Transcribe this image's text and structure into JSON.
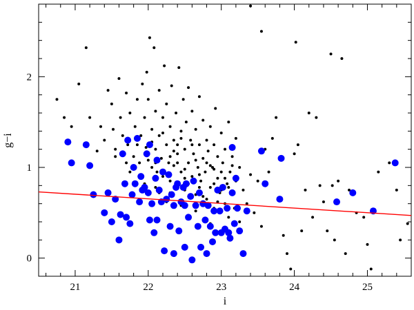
{
  "chart_data": {
    "type": "scatter",
    "xlabel": "i",
    "ylabel": "g−i",
    "xlim": [
      20.5,
      25.6
    ],
    "ylim": [
      -0.2,
      2.8
    ],
    "xticks": [
      21,
      22,
      23,
      24,
      25
    ],
    "yticks": [
      0,
      1,
      2
    ],
    "xtick_labels": [
      "21",
      "22",
      "23",
      "24",
      "25"
    ],
    "ytick_labels": [
      "0",
      "1",
      "2"
    ],
    "grid": false,
    "series": [
      {
        "marker": "small-dot",
        "color": "#000000",
        "points": [
          [
            20.75,
            1.75
          ],
          [
            20.85,
            1.55
          ],
          [
            20.95,
            1.45
          ],
          [
            21.05,
            1.92
          ],
          [
            21.15,
            2.32
          ],
          [
            21.2,
            1.55
          ],
          [
            21.3,
            1.18
          ],
          [
            21.35,
            1.45
          ],
          [
            21.4,
            1.3
          ],
          [
            21.45,
            1.85
          ],
          [
            21.5,
            1.7
          ],
          [
            21.52,
            1.42
          ],
          [
            21.55,
            1.2
          ],
          [
            21.6,
            1.98
          ],
          [
            21.62,
            1.55
          ],
          [
            21.65,
            1.35
          ],
          [
            21.7,
            1.82
          ],
          [
            21.72,
            1.25
          ],
          [
            21.75,
            1.6
          ],
          [
            21.8,
            1.12
          ],
          [
            21.82,
            1.45
          ],
          [
            21.85,
            1.75
          ],
          [
            21.88,
            1.05
          ],
          [
            21.9,
            1.35
          ],
          [
            21.92,
            1.92
          ],
          [
            21.95,
            1.55
          ],
          [
            21.97,
            1.22
          ],
          [
            21.98,
            2.05
          ],
          [
            22.0,
            1.75
          ],
          [
            22.0,
            1.15
          ],
          [
            22.02,
            2.43
          ],
          [
            22.05,
            1.42
          ],
          [
            22.05,
            1.0
          ],
          [
            22.08,
            2.32
          ],
          [
            22.1,
            1.62
          ],
          [
            22.1,
            1.2
          ],
          [
            22.12,
            0.95
          ],
          [
            22.15,
            1.85
          ],
          [
            22.15,
            1.35
          ],
          [
            22.18,
            1.1
          ],
          [
            22.2,
            1.55
          ],
          [
            22.2,
            0.9
          ],
          [
            22.22,
            2.12
          ],
          [
            22.25,
            1.25
          ],
          [
            22.25,
            1.7
          ],
          [
            22.28,
            1.05
          ],
          [
            22.3,
            1.45
          ],
          [
            22.3,
            0.85
          ],
          [
            22.32,
            1.9
          ],
          [
            22.35,
            1.3
          ],
          [
            22.35,
            1.02
          ],
          [
            22.38,
            1.6
          ],
          [
            22.4,
            1.15
          ],
          [
            22.4,
            0.8
          ],
          [
            22.42,
            2.1
          ],
          [
            22.45,
            1.4
          ],
          [
            22.45,
            0.95
          ],
          [
            22.48,
            1.75
          ],
          [
            22.5,
            1.2
          ],
          [
            22.5,
            0.75
          ],
          [
            22.52,
            1.5
          ],
          [
            22.55,
            1.05
          ],
          [
            22.55,
            1.88
          ],
          [
            22.58,
            1.3
          ],
          [
            22.6,
            0.9
          ],
          [
            22.6,
            1.62
          ],
          [
            22.62,
            1.15
          ],
          [
            22.65,
            1.42
          ],
          [
            22.65,
            0.7
          ],
          [
            22.68,
            1.0
          ],
          [
            22.7,
            1.25
          ],
          [
            22.7,
            1.78
          ],
          [
            22.72,
            0.85
          ],
          [
            22.75,
            1.1
          ],
          [
            22.75,
            1.52
          ],
          [
            22.78,
            0.95
          ],
          [
            22.8,
            1.3
          ],
          [
            22.8,
            0.65
          ],
          [
            22.82,
            1.18
          ],
          [
            22.85,
            1.45
          ],
          [
            22.85,
            0.78
          ],
          [
            22.88,
            1.0
          ],
          [
            22.9,
            1.25
          ],
          [
            22.9,
            0.55
          ],
          [
            22.92,
            1.65
          ],
          [
            22.95,
            0.88
          ],
          [
            22.95,
            1.12
          ],
          [
            22.98,
            0.72
          ],
          [
            23.0,
            1.38
          ],
          [
            23.0,
            0.95
          ],
          [
            23.02,
            1.05
          ],
          [
            23.05,
            0.6
          ],
          [
            23.05,
            1.2
          ],
          [
            23.08,
            0.82
          ],
          [
            23.1,
            1.5
          ],
          [
            23.1,
            0.45
          ],
          [
            23.12,
            0.95
          ],
          [
            23.15,
            1.12
          ],
          [
            23.15,
            0.7
          ],
          [
            23.18,
            0.55
          ],
          [
            23.2,
            1.32
          ],
          [
            23.2,
            0.85
          ],
          [
            23.25,
            1.0
          ],
          [
            23.25,
            0.4
          ],
          [
            23.3,
            0.75
          ],
          [
            23.35,
            0.6
          ],
          [
            23.4,
            0.92
          ],
          [
            23.45,
            0.5
          ],
          [
            23.5,
            0.85
          ],
          [
            23.55,
            0.35
          ],
          [
            23.4,
            2.78
          ],
          [
            23.55,
            2.5
          ],
          [
            23.6,
            1.2
          ],
          [
            23.65,
            0.95
          ],
          [
            23.7,
            1.32
          ],
          [
            23.75,
            1.55
          ],
          [
            23.8,
            0.65
          ],
          [
            23.85,
            0.25
          ],
          [
            23.9,
            0.05
          ],
          [
            23.95,
            -0.12
          ],
          [
            24.0,
            1.15
          ],
          [
            24.02,
            2.38
          ],
          [
            24.05,
            1.25
          ],
          [
            24.1,
            0.3
          ],
          [
            24.15,
            0.75
          ],
          [
            24.2,
            1.6
          ],
          [
            24.25,
            0.45
          ],
          [
            24.3,
            1.55
          ],
          [
            24.35,
            0.8
          ],
          [
            24.4,
            0.62
          ],
          [
            24.45,
            0.3
          ],
          [
            24.5,
            2.25
          ],
          [
            24.52,
            0.8
          ],
          [
            24.55,
            0.2
          ],
          [
            24.6,
            0.85
          ],
          [
            24.65,
            2.2
          ],
          [
            24.7,
            0.05
          ],
          [
            24.75,
            0.75
          ],
          [
            24.85,
            0.5
          ],
          [
            24.95,
            0.45
          ],
          [
            25.0,
            0.15
          ],
          [
            25.05,
            -0.12
          ],
          [
            25.15,
            0.95
          ],
          [
            25.3,
            1.05
          ],
          [
            25.4,
            0.75
          ],
          [
            25.45,
            0.2
          ],
          [
            25.55,
            0.38
          ],
          [
            21.55,
            1.12
          ],
          [
            21.7,
            1.05
          ],
          [
            21.85,
            1.25
          ],
          [
            21.95,
            0.82
          ],
          [
            22.05,
            1.28
          ],
          [
            22.15,
            0.72
          ],
          [
            22.25,
            0.92
          ],
          [
            22.35,
            1.18
          ],
          [
            22.45,
            1.32
          ],
          [
            22.55,
            0.82
          ],
          [
            22.65,
            1.08
          ],
          [
            22.75,
            0.68
          ],
          [
            22.85,
            1.02
          ],
          [
            22.95,
            0.62
          ],
          [
            23.05,
            0.88
          ],
          [
            23.15,
            1.02
          ],
          [
            22.3,
            1.12
          ],
          [
            22.5,
            0.98
          ],
          [
            22.7,
            0.92
          ],
          [
            22.9,
            0.82
          ],
          [
            22.1,
            1.05
          ],
          [
            22.2,
            1.38
          ],
          [
            22.4,
            1.05
          ],
          [
            22.6,
            1.25
          ],
          [
            22.8,
            1.05
          ],
          [
            23.0,
            0.75
          ],
          [
            22.25,
            0.62
          ],
          [
            22.45,
            0.58
          ],
          [
            22.65,
            0.52
          ],
          [
            22.85,
            0.38
          ],
          [
            21.9,
            0.92
          ],
          [
            22.0,
            1.08
          ],
          [
            22.1,
            0.78
          ],
          [
            22.3,
            0.72
          ],
          [
            22.5,
            0.88
          ],
          [
            22.7,
            0.78
          ],
          [
            22.9,
            0.98
          ],
          [
            23.1,
            0.78
          ],
          [
            21.75,
            0.95
          ],
          [
            22.4,
            1.25
          ]
        ]
      },
      {
        "marker": "large-dot",
        "color": "#0000ff",
        "points": [
          [
            20.9,
            1.28
          ],
          [
            20.95,
            1.05
          ],
          [
            21.15,
            1.25
          ],
          [
            21.2,
            1.02
          ],
          [
            21.25,
            0.7
          ],
          [
            21.4,
            0.5
          ],
          [
            21.45,
            0.72
          ],
          [
            21.5,
            0.4
          ],
          [
            21.55,
            0.65
          ],
          [
            21.6,
            0.2
          ],
          [
            21.62,
            0.48
          ],
          [
            21.65,
            1.15
          ],
          [
            21.68,
            0.82
          ],
          [
            21.7,
            0.45
          ],
          [
            21.72,
            1.3
          ],
          [
            21.75,
            0.38
          ],
          [
            21.78,
            0.7
          ],
          [
            21.8,
            1.0
          ],
          [
            21.82,
            0.82
          ],
          [
            21.85,
            1.32
          ],
          [
            21.88,
            0.62
          ],
          [
            21.9,
            0.9
          ],
          [
            21.92,
            0.75
          ],
          [
            21.95,
            0.78
          ],
          [
            21.98,
            1.15
          ],
          [
            22.0,
            0.72
          ],
          [
            22.02,
            1.25
          ],
          [
            22.02,
            0.42
          ],
          [
            22.05,
            0.6
          ],
          [
            22.08,
            0.28
          ],
          [
            22.1,
            0.88
          ],
          [
            22.12,
            0.42
          ],
          [
            22.12,
            1.08
          ],
          [
            22.15,
            0.75
          ],
          [
            22.18,
            0.62
          ],
          [
            22.2,
            0.95
          ],
          [
            22.22,
            0.08
          ],
          [
            22.25,
            0.65
          ],
          [
            22.28,
            0.92
          ],
          [
            22.3,
            0.35
          ],
          [
            22.32,
            0.7
          ],
          [
            22.35,
            0.58
          ],
          [
            22.35,
            0.05
          ],
          [
            22.38,
            0.78
          ],
          [
            22.4,
            0.82
          ],
          [
            22.42,
            0.3
          ],
          [
            22.45,
            0.62
          ],
          [
            22.48,
            0.78
          ],
          [
            22.5,
            0.58
          ],
          [
            22.5,
            0.12
          ],
          [
            22.52,
            0.82
          ],
          [
            22.55,
            0.45
          ],
          [
            22.58,
            0.68
          ],
          [
            22.6,
            -0.02
          ],
          [
            22.62,
            0.85
          ],
          [
            22.65,
            0.58
          ],
          [
            22.68,
            0.35
          ],
          [
            22.7,
            0.72
          ],
          [
            22.72,
            0.12
          ],
          [
            22.75,
            0.6
          ],
          [
            22.78,
            0.42
          ],
          [
            22.8,
            0.05
          ],
          [
            22.82,
            0.58
          ],
          [
            22.85,
            0.35
          ],
          [
            22.88,
            0.18
          ],
          [
            22.9,
            0.52
          ],
          [
            22.92,
            0.28
          ],
          [
            22.95,
            0.75
          ],
          [
            22.98,
            0.52
          ],
          [
            23.0,
            0.28
          ],
          [
            23.02,
            0.78
          ],
          [
            23.05,
            0.32
          ],
          [
            23.08,
            0.55
          ],
          [
            23.1,
            0.28
          ],
          [
            23.12,
            0.22
          ],
          [
            23.15,
            0.72
          ],
          [
            23.18,
            0.38
          ],
          [
            23.2,
            0.88
          ],
          [
            23.22,
            0.55
          ],
          [
            23.25,
            0.3
          ],
          [
            23.3,
            0.05
          ],
          [
            23.35,
            0.52
          ],
          [
            23.15,
            1.22
          ],
          [
            23.55,
            1.18
          ],
          [
            23.6,
            0.82
          ],
          [
            23.8,
            0.65
          ],
          [
            23.82,
            1.1
          ],
          [
            24.58,
            0.62
          ],
          [
            24.8,
            0.72
          ],
          [
            25.08,
            0.52
          ],
          [
            25.38,
            1.05
          ]
        ]
      },
      {
        "marker": "line",
        "color": "#ff0000",
        "points": [
          [
            20.5,
            0.73
          ],
          [
            25.6,
            0.47
          ]
        ]
      }
    ]
  }
}
